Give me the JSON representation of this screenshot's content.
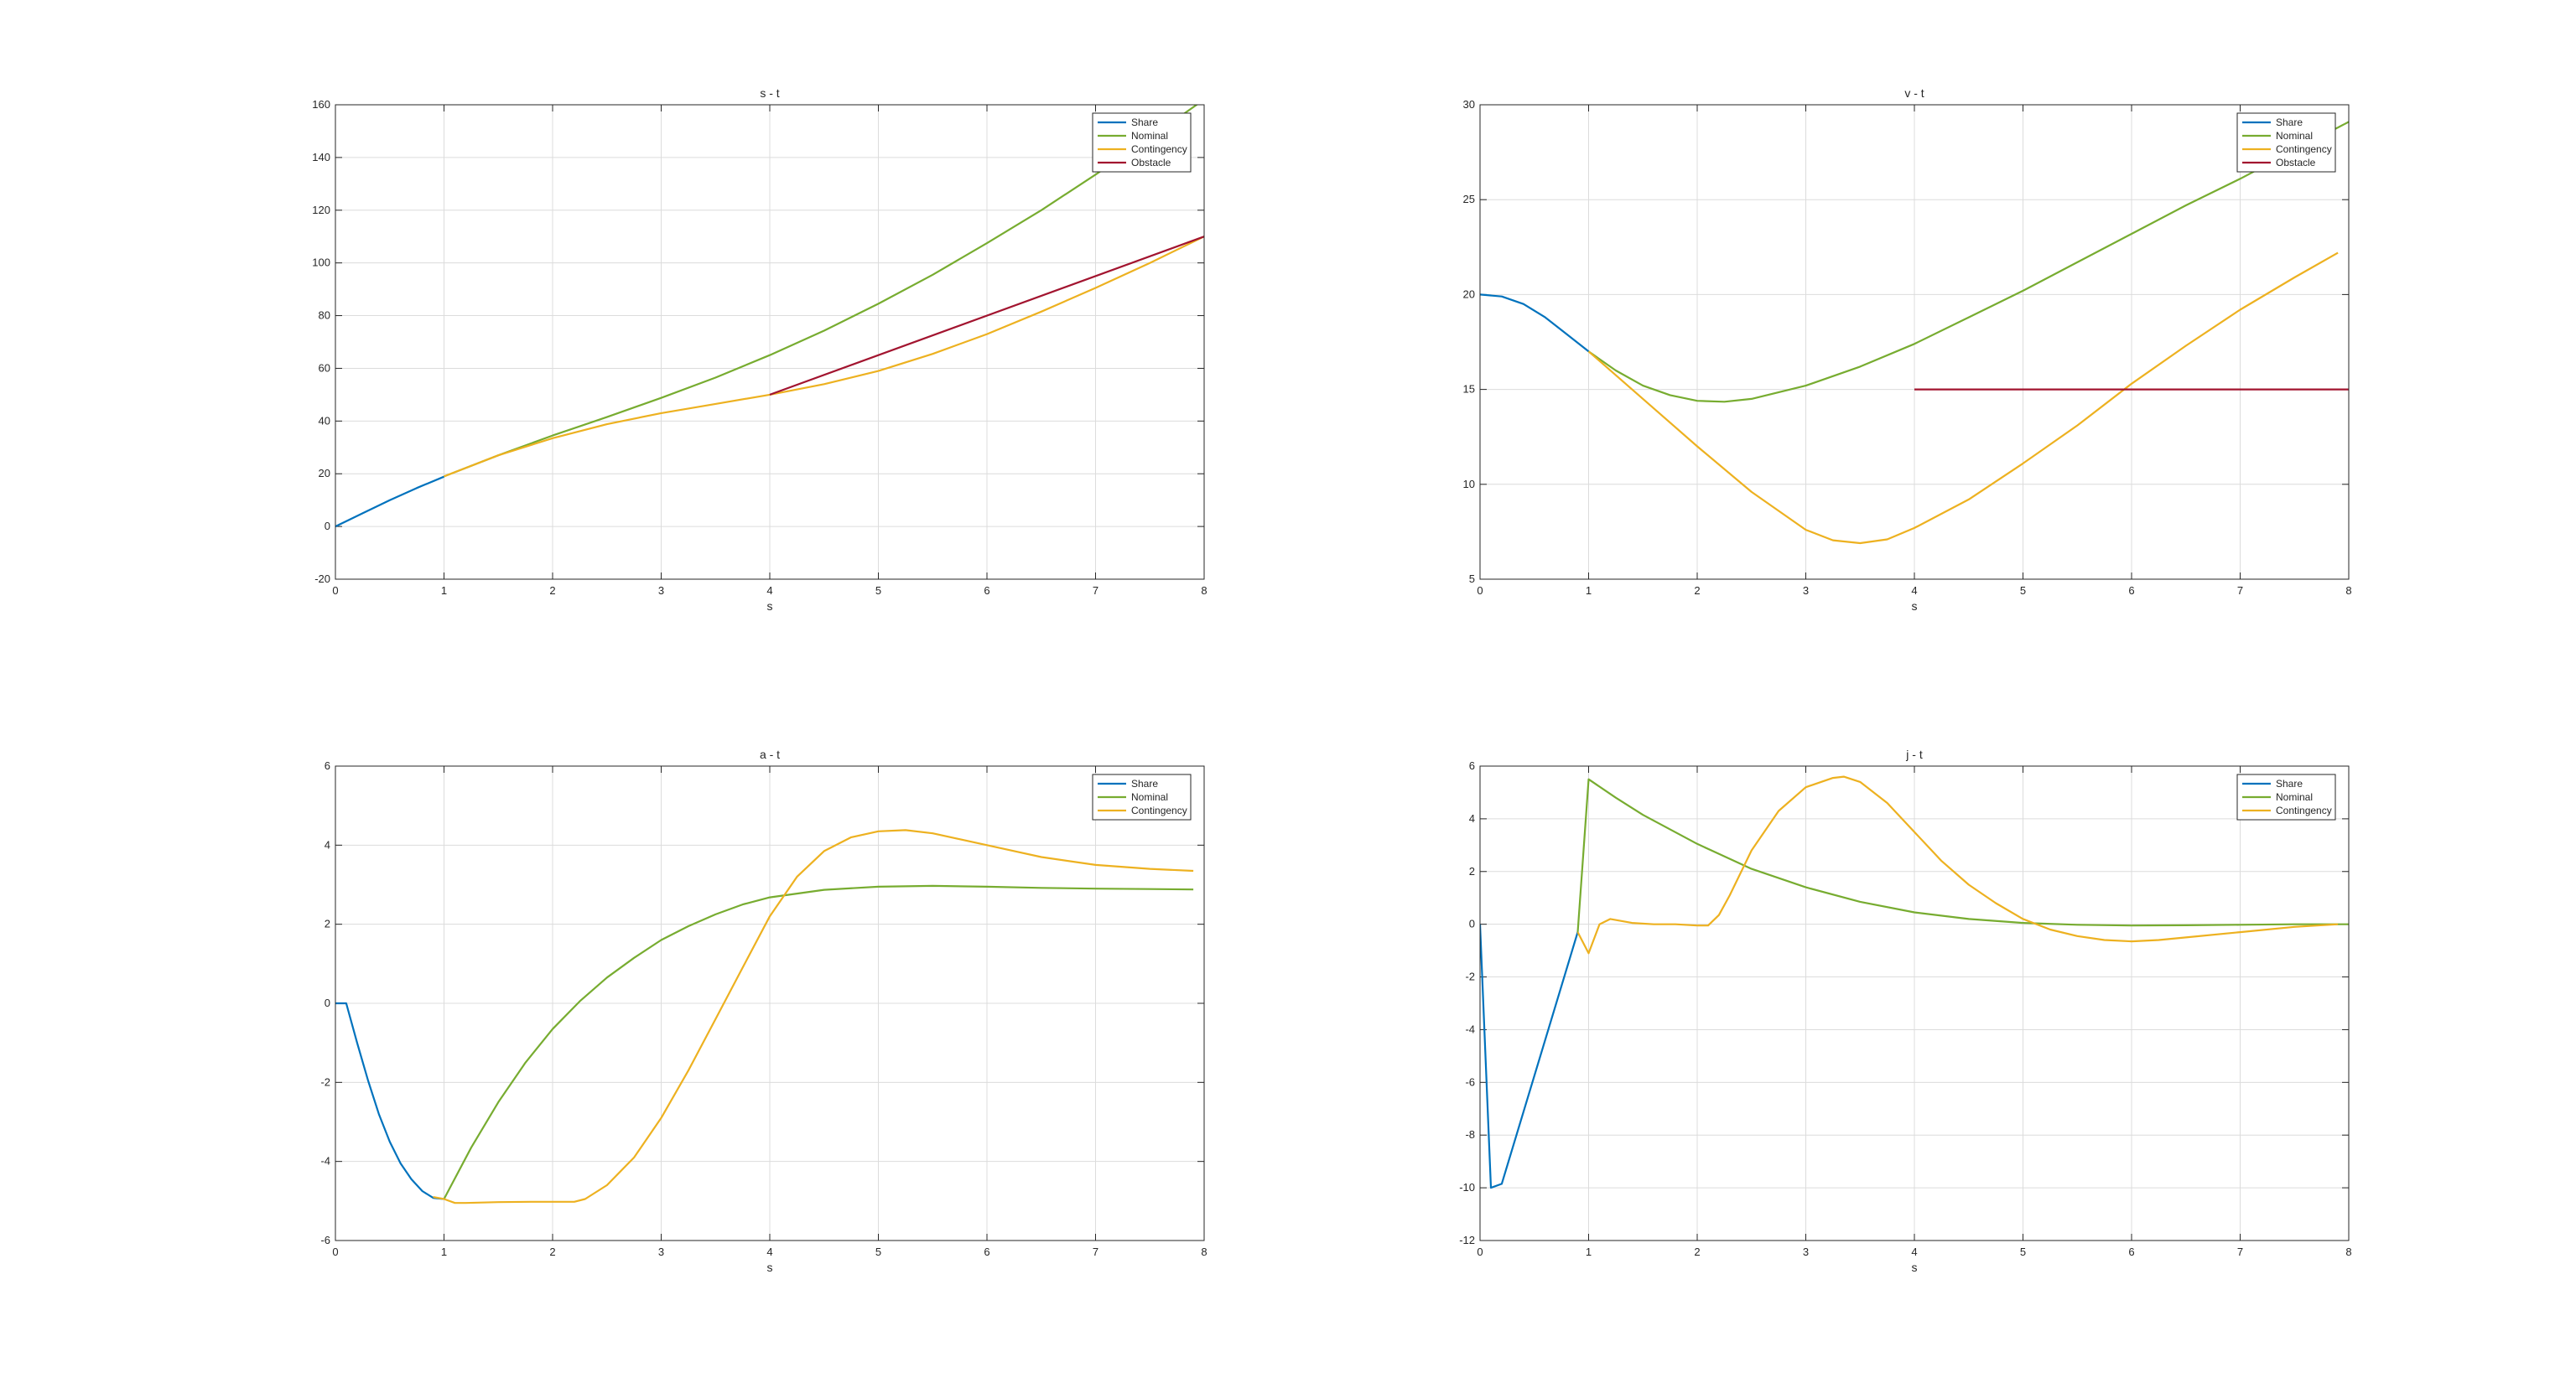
{
  "chart_data": [
    {
      "type": "line",
      "title": "s - t",
      "xlabel": "s",
      "ylabel": "",
      "xlim": [
        0,
        8
      ],
      "ylim": [
        -20,
        160
      ],
      "xticks": [
        "0",
        "1",
        "2",
        "3",
        "4",
        "5",
        "6",
        "7",
        "8"
      ],
      "yticks": [
        "-20",
        "0",
        "20",
        "40",
        "60",
        "80",
        "100",
        "120",
        "140",
        "160"
      ],
      "grid": true,
      "legend": "top-right",
      "series": [
        {
          "name": "Share",
          "color": "#0072BD",
          "x": [
            0,
            0.25,
            0.5,
            0.75,
            1.0
          ],
          "y": [
            0,
            5,
            10,
            14.6,
            18.9
          ]
        },
        {
          "name": "Nominal",
          "color": "#77AC30",
          "x": [
            1,
            1.5,
            2,
            2.5,
            3,
            3.5,
            4,
            4.5,
            5,
            5.5,
            6,
            6.5,
            7,
            7.5,
            8
          ],
          "y": [
            19,
            27,
            34.5,
            41.5,
            48.8,
            56.5,
            65,
            74.3,
            84.5,
            95.5,
            107.5,
            120,
            133.5,
            147.5,
            162
          ]
        },
        {
          "name": "Contingency",
          "color": "#EDB120",
          "x": [
            1,
            1.5,
            2,
            2.5,
            3,
            3.5,
            4,
            4.5,
            5,
            5.5,
            6,
            6.5,
            7,
            7.5,
            8
          ],
          "y": [
            19,
            27,
            33.5,
            38.8,
            43,
            46.5,
            50,
            54,
            59,
            65.5,
            73,
            81.5,
            90.5,
            100,
            110
          ]
        },
        {
          "name": "Obstacle",
          "color": "#A2142F",
          "x": [
            4,
            8
          ],
          "y": [
            50,
            110
          ]
        }
      ]
    },
    {
      "type": "line",
      "title": "v - t",
      "xlabel": "s",
      "ylabel": "",
      "xlim": [
        0,
        8
      ],
      "ylim": [
        5,
        30
      ],
      "xticks": [
        "0",
        "1",
        "2",
        "3",
        "4",
        "5",
        "6",
        "7",
        "8"
      ],
      "yticks": [
        "5",
        "10",
        "15",
        "20",
        "25",
        "30"
      ],
      "grid": true,
      "legend": "top-right",
      "series": [
        {
          "name": "Share",
          "color": "#0072BD",
          "x": [
            0,
            0.2,
            0.4,
            0.6,
            0.8,
            1.0
          ],
          "y": [
            20,
            19.9,
            19.5,
            18.8,
            17.9,
            17
          ]
        },
        {
          "name": "Nominal",
          "color": "#77AC30",
          "x": [
            1,
            1.25,
            1.5,
            1.75,
            2,
            2.25,
            2.5,
            3,
            3.5,
            4,
            4.5,
            5,
            5.5,
            6,
            6.5,
            7,
            7.5,
            8
          ],
          "y": [
            17,
            16,
            15.2,
            14.7,
            14.4,
            14.35,
            14.5,
            15.2,
            16.2,
            17.4,
            18.8,
            20.2,
            21.7,
            23.2,
            24.7,
            26.1,
            27.6,
            29.1
          ]
        },
        {
          "name": "Contingency",
          "color": "#EDB120",
          "x": [
            1,
            1.5,
            2,
            2.5,
            3,
            3.25,
            3.5,
            3.75,
            4,
            4.5,
            5,
            5.5,
            6,
            6.5,
            7,
            7.5,
            7.9
          ],
          "y": [
            17,
            14.5,
            12,
            9.6,
            7.6,
            7.05,
            6.9,
            7.1,
            7.7,
            9.2,
            11.1,
            13.1,
            15.3,
            17.3,
            19.2,
            20.9,
            22.2
          ]
        },
        {
          "name": "Obstacle",
          "color": "#A2142F",
          "x": [
            4,
            8
          ],
          "y": [
            15,
            15
          ]
        }
      ]
    },
    {
      "type": "line",
      "title": "a - t",
      "xlabel": "s",
      "ylabel": "",
      "xlim": [
        0,
        8
      ],
      "ylim": [
        -6,
        6
      ],
      "xticks": [
        "0",
        "1",
        "2",
        "3",
        "4",
        "5",
        "6",
        "7",
        "8"
      ],
      "yticks": [
        "-6",
        "-4",
        "-2",
        "0",
        "2",
        "4",
        "6"
      ],
      "grid": true,
      "legend": "top-right",
      "series": [
        {
          "name": "Share",
          "color": "#0072BD",
          "x": [
            0,
            0.1,
            0.2,
            0.3,
            0.4,
            0.5,
            0.6,
            0.7,
            0.8,
            0.9,
            1.0
          ],
          "y": [
            0,
            0,
            -1.0,
            -1.95,
            -2.8,
            -3.5,
            -4.05,
            -4.45,
            -4.75,
            -4.92,
            -4.95
          ]
        },
        {
          "name": "Nominal",
          "color": "#77AC30",
          "x": [
            1,
            1.25,
            1.5,
            1.75,
            2,
            2.25,
            2.5,
            2.75,
            3,
            3.25,
            3.5,
            3.75,
            4,
            4.5,
            5,
            5.5,
            6,
            6.5,
            7,
            7.5,
            7.9
          ],
          "y": [
            -4.95,
            -3.65,
            -2.5,
            -1.5,
            -0.65,
            0.05,
            0.65,
            1.15,
            1.6,
            1.95,
            2.25,
            2.5,
            2.68,
            2.87,
            2.95,
            2.97,
            2.95,
            2.92,
            2.9,
            2.89,
            2.88
          ]
        },
        {
          "name": "Contingency",
          "color": "#EDB120",
          "x": [
            0.9,
            1.0,
            1.1,
            1.2,
            1.5,
            1.8,
            2.0,
            2.2,
            2.3,
            2.5,
            2.75,
            3.0,
            3.25,
            3.5,
            3.75,
            4.0,
            4.25,
            4.5,
            4.75,
            5.0,
            5.25,
            5.5,
            6.0,
            6.5,
            7.0,
            7.5,
            7.9
          ],
          "y": [
            -4.9,
            -4.95,
            -5.05,
            -5.05,
            -5.03,
            -5.02,
            -5.02,
            -5.02,
            -4.95,
            -4.6,
            -3.9,
            -2.9,
            -1.7,
            -0.4,
            0.9,
            2.2,
            3.2,
            3.85,
            4.2,
            4.35,
            4.38,
            4.3,
            4.0,
            3.7,
            3.5,
            3.4,
            3.35
          ]
        }
      ]
    },
    {
      "type": "line",
      "title": "j - t",
      "xlabel": "s",
      "ylabel": "",
      "xlim": [
        0,
        8
      ],
      "ylim": [
        -12,
        6
      ],
      "xticks": [
        "0",
        "1",
        "2",
        "3",
        "4",
        "5",
        "6",
        "7",
        "8"
      ],
      "yticks": [
        "-12",
        "-10",
        "-8",
        "-6",
        "-4",
        "-2",
        "0",
        "2",
        "4",
        "6"
      ],
      "grid": true,
      "legend": "top-right",
      "series": [
        {
          "name": "Share",
          "color": "#0072BD",
          "x": [
            0,
            0.1,
            0.2,
            0.9
          ],
          "y": [
            0,
            -10,
            -9.85,
            -0.3
          ]
        },
        {
          "name": "Nominal",
          "color": "#77AC30",
          "x": [
            0.9,
            1.0,
            1.25,
            1.5,
            2,
            2.5,
            3,
            3.5,
            4,
            4.5,
            5,
            5.5,
            6,
            6.5,
            7,
            7.5,
            8
          ],
          "y": [
            -0.3,
            5.5,
            4.8,
            4.15,
            3.05,
            2.1,
            1.4,
            0.85,
            0.45,
            0.2,
            0.05,
            -0.02,
            -0.05,
            -0.04,
            -0.02,
            0,
            0
          ]
        },
        {
          "name": "Contingency",
          "color": "#EDB120",
          "x": [
            0.9,
            1.0,
            1.1,
            1.2,
            1.4,
            1.6,
            1.8,
            2.0,
            2.1,
            2.2,
            2.3,
            2.5,
            2.75,
            3.0,
            3.25,
            3.35,
            3.5,
            3.75,
            4.0,
            4.25,
            4.5,
            4.75,
            5.0,
            5.25,
            5.5,
            5.75,
            6.0,
            6.25,
            6.5,
            7.0,
            7.5,
            7.9
          ],
          "y": [
            -0.3,
            -1.1,
            0,
            0.2,
            0.05,
            0,
            0,
            -0.05,
            -0.05,
            0.35,
            1.1,
            2.8,
            4.3,
            5.2,
            5.55,
            5.6,
            5.4,
            4.6,
            3.5,
            2.4,
            1.5,
            0.8,
            0.2,
            -0.2,
            -0.45,
            -0.6,
            -0.65,
            -0.6,
            -0.5,
            -0.3,
            -0.1,
            0
          ]
        }
      ]
    }
  ]
}
